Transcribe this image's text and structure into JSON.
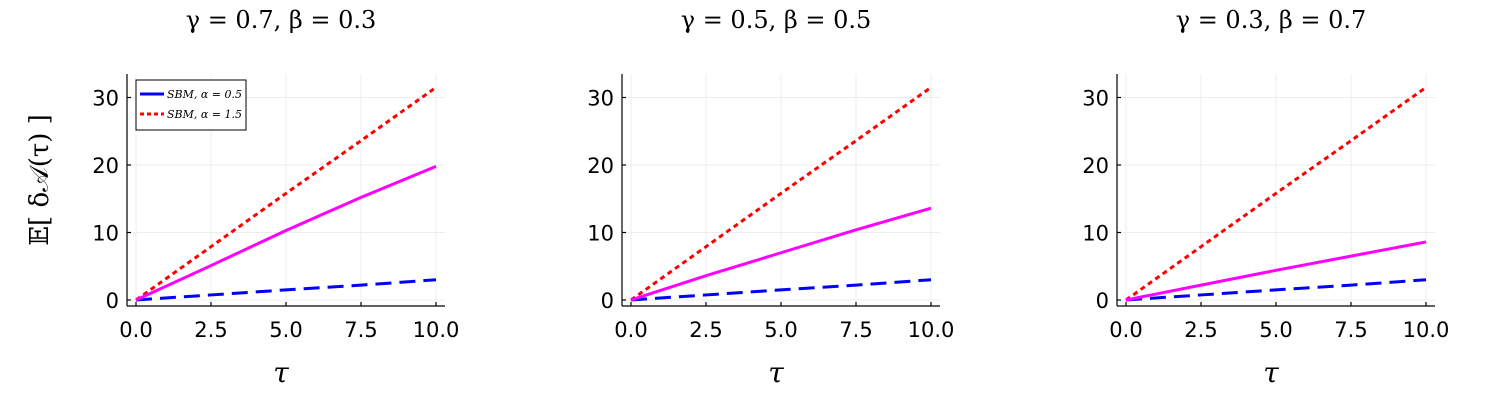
{
  "colors": {
    "sbm_low": "#0000ff",
    "sbm_high": "#ff0000",
    "curve": "#ff00ff"
  },
  "chart_data": [
    {
      "type": "line",
      "title": "γ = 0.7, β = 0.3",
      "xlabel": "τ",
      "ylabel": "𝔼[ δ𝒜(τ) ]",
      "xlim": [
        0,
        10
      ],
      "ylim": [
        0,
        32
      ],
      "xticks": [
        "0.0",
        "2.5",
        "5.0",
        "7.5",
        "10.0"
      ],
      "yticks": [
        "0",
        "10",
        "20",
        "30"
      ],
      "grid": true,
      "legend": "top-left",
      "series": [
        {
          "name": "SBM, α = 0.5",
          "style": "dashed",
          "color": "#0000ff",
          "x": [
            0,
            2.5,
            5,
            7.5,
            10
          ],
          "y": [
            0,
            0.75,
            1.5,
            2.2,
            3.0
          ]
        },
        {
          "name": "SBM, α = 1.5",
          "style": "dotted",
          "color": "#ff0000",
          "x": [
            0,
            2.5,
            5,
            7.5,
            10
          ],
          "y": [
            0,
            7.9,
            15.8,
            23.6,
            31.5
          ]
        },
        {
          "style": "solid",
          "color": "#ff00ff",
          "x": [
            0,
            2.5,
            5,
            7.5,
            10
          ],
          "y": [
            0,
            5.1,
            10.3,
            15.2,
            19.8
          ]
        }
      ]
    },
    {
      "type": "line",
      "title": "γ = 0.5, β = 0.5",
      "xlabel": "τ",
      "ylabel": "",
      "xlim": [
        0,
        10
      ],
      "ylim": [
        0,
        32
      ],
      "xticks": [
        "0.0",
        "2.5",
        "5.0",
        "7.5",
        "10.0"
      ],
      "yticks": [
        "0",
        "10",
        "20",
        "30"
      ],
      "grid": true,
      "series": [
        {
          "style": "dashed",
          "color": "#0000ff",
          "x": [
            0,
            2.5,
            5,
            7.5,
            10
          ],
          "y": [
            0,
            0.75,
            1.5,
            2.2,
            3.0
          ]
        },
        {
          "style": "dotted",
          "color": "#ff0000",
          "x": [
            0,
            2.5,
            5,
            7.5,
            10
          ],
          "y": [
            0,
            7.9,
            15.8,
            23.6,
            31.5
          ]
        },
        {
          "style": "solid",
          "color": "#ff00ff",
          "x": [
            0,
            2.5,
            5,
            7.5,
            10
          ],
          "y": [
            0,
            3.6,
            7.0,
            10.4,
            13.6
          ]
        }
      ]
    },
    {
      "type": "line",
      "title": "γ = 0.3, β = 0.7",
      "xlabel": "τ",
      "ylabel": "",
      "xlim": [
        0,
        10
      ],
      "ylim": [
        0,
        32
      ],
      "xticks": [
        "0.0",
        "2.5",
        "5.0",
        "7.5",
        "10.0"
      ],
      "yticks": [
        "0",
        "10",
        "20",
        "30"
      ],
      "grid": true,
      "series": [
        {
          "style": "dashed",
          "color": "#0000ff",
          "x": [
            0,
            2.5,
            5,
            7.5,
            10
          ],
          "y": [
            0,
            0.75,
            1.5,
            2.2,
            3.0
          ]
        },
        {
          "style": "dotted",
          "color": "#ff0000",
          "x": [
            0,
            2.5,
            5,
            7.5,
            10
          ],
          "y": [
            0,
            7.9,
            15.8,
            23.6,
            31.5
          ]
        },
        {
          "style": "solid",
          "color": "#ff00ff",
          "x": [
            0,
            2.5,
            5,
            7.5,
            10
          ],
          "y": [
            0,
            2.2,
            4.4,
            6.5,
            8.6
          ]
        }
      ]
    }
  ]
}
